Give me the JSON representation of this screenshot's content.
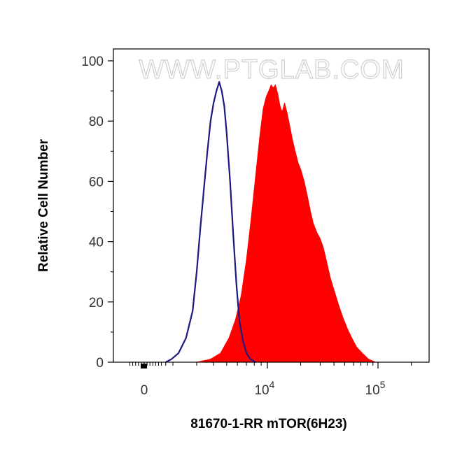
{
  "watermark": "WWW.PTGLAB.COM",
  "chart_data": {
    "type": "area",
    "title": "",
    "xlabel": "81670-1-RR mTOR(6H23)",
    "ylabel": "Relative Cell Number",
    "x_scale": "biexponential",
    "xlim": [
      -1200,
      400000
    ],
    "ylim": [
      0,
      100
    ],
    "y_ticks": [
      0,
      20,
      40,
      60,
      80,
      100
    ],
    "x_ticks": [
      {
        "value": 0,
        "label": "0"
      },
      {
        "value": 10000,
        "base": "10",
        "exponent": "4"
      },
      {
        "value": 100000,
        "base": "10",
        "exponent": "5"
      }
    ],
    "grid": false,
    "legend": "none",
    "colors": {
      "control": "#1a1a80",
      "sample": "#ff0000",
      "axis": "#000000"
    },
    "series": [
      {
        "style": "outline",
        "points": [
          [
            1500,
            0
          ],
          [
            1900,
            1
          ],
          [
            2200,
            3
          ],
          [
            2500,
            8
          ],
          [
            2800,
            17
          ],
          [
            3000,
            30
          ],
          [
            3200,
            45
          ],
          [
            3400,
            58
          ],
          [
            3600,
            70
          ],
          [
            3800,
            80
          ],
          [
            4000,
            86
          ],
          [
            4200,
            90
          ],
          [
            4400,
            93
          ],
          [
            4600,
            90
          ],
          [
            4800,
            85
          ],
          [
            5000,
            76
          ],
          [
            5300,
            60
          ],
          [
            5600,
            42
          ],
          [
            5900,
            26
          ],
          [
            6200,
            14
          ],
          [
            6600,
            7
          ],
          [
            7000,
            3
          ],
          [
            7500,
            1
          ],
          [
            8200,
            0
          ]
        ]
      },
      {
        "style": "filled",
        "points": [
          [
            3000,
            0
          ],
          [
            3800,
            1
          ],
          [
            4500,
            3
          ],
          [
            5200,
            8
          ],
          [
            5800,
            14
          ],
          [
            6400,
            22
          ],
          [
            7000,
            34
          ],
          [
            7600,
            48
          ],
          [
            8200,
            62
          ],
          [
            8800,
            75
          ],
          [
            9300,
            84
          ],
          [
            9800,
            88
          ],
          [
            10300,
            90
          ],
          [
            10800,
            92
          ],
          [
            11300,
            91
          ],
          [
            11800,
            92
          ],
          [
            12400,
            89
          ],
          [
            13000,
            85
          ],
          [
            13600,
            83
          ],
          [
            14300,
            86
          ],
          [
            15000,
            83
          ],
          [
            15800,
            79
          ],
          [
            16800,
            74
          ],
          [
            17800,
            70
          ],
          [
            19000,
            66
          ],
          [
            20000,
            64
          ],
          [
            21500,
            60
          ],
          [
            23000,
            55
          ],
          [
            24500,
            50
          ],
          [
            26000,
            46
          ],
          [
            28000,
            43
          ],
          [
            30000,
            41
          ],
          [
            32000,
            38
          ],
          [
            34000,
            34
          ],
          [
            37000,
            28
          ],
          [
            40000,
            24
          ],
          [
            44000,
            19
          ],
          [
            48000,
            15
          ],
          [
            53000,
            11
          ],
          [
            58000,
            8
          ],
          [
            64000,
            5
          ],
          [
            72000,
            3
          ],
          [
            82000,
            1
          ],
          [
            95000,
            0
          ]
        ]
      }
    ]
  }
}
